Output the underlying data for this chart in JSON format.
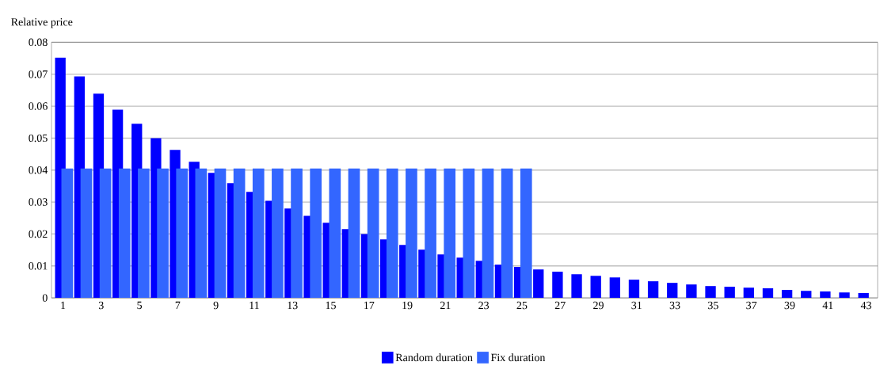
{
  "chart_data": {
    "type": "bar",
    "ylabel": "Relative price",
    "categories": [
      "1",
      null,
      "3",
      null,
      "5",
      null,
      "7",
      null,
      "9",
      null,
      "11",
      null,
      "13",
      null,
      "15",
      null,
      "17",
      null,
      "19",
      null,
      "21",
      null,
      "23",
      null,
      "25",
      null,
      "27",
      null,
      "29",
      null,
      "31",
      null,
      "33",
      null,
      "35",
      null,
      "37",
      null,
      "39",
      null,
      "41",
      null,
      "43"
    ],
    "series": [
      {
        "name": "Random duration",
        "color": "#0000ff",
        "values": [
          0.0752,
          0.0693,
          0.0639,
          0.0589,
          0.0545,
          0.05,
          0.0463,
          0.0426,
          0.0391,
          0.0359,
          0.0332,
          0.0304,
          0.028,
          0.0257,
          0.0235,
          0.0215,
          0.02,
          0.0183,
          0.0166,
          0.0151,
          0.0136,
          0.0126,
          0.0116,
          0.0104,
          0.0097,
          0.0089,
          0.0082,
          0.0074,
          0.0069,
          0.0064,
          0.0057,
          0.0052,
          0.0047,
          0.0042,
          0.0037,
          0.0035,
          0.0032,
          0.003,
          0.0025,
          0.0022,
          0.002,
          0.0017,
          0.0015
        ]
      },
      {
        "name": "Fix duration",
        "color": "#3366ff",
        "values": [
          0.0405,
          0.0405,
          0.0405,
          0.0405,
          0.0405,
          0.0405,
          0.0405,
          0.0405,
          0.0405,
          0.0405,
          0.0405,
          0.0405,
          0.0405,
          0.0405,
          0.0405,
          0.0405,
          0.0405,
          0.0405,
          0.0405,
          0.0405,
          0.0405,
          0.0405,
          0.0405,
          0.0405,
          0.0405,
          null,
          null,
          null,
          null,
          null,
          null,
          null,
          null,
          null,
          null,
          null,
          null,
          null,
          null,
          null,
          null,
          null,
          null
        ]
      }
    ],
    "ylim": [
      0,
      0.08
    ],
    "yticks": [
      0,
      0.01,
      0.02,
      0.03,
      0.04,
      0.05,
      0.06,
      0.07,
      0.08
    ],
    "grid": "y",
    "legend": "bottom"
  }
}
